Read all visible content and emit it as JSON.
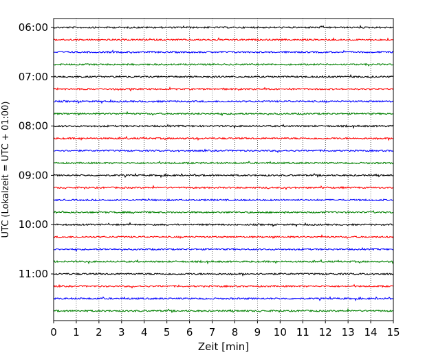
{
  "chart_data": {
    "type": "line",
    "title": "",
    "xlabel": "Zeit  [min]",
    "ylabel": "UTC (Lokalzeit = UTC + 01:00)",
    "xlim": [
      0,
      15
    ],
    "x_ticks": [
      "0",
      "1",
      "2",
      "3",
      "4",
      "5",
      "6",
      "7",
      "8",
      "9",
      "10",
      "11",
      "12",
      "13",
      "14",
      "15"
    ],
    "vertical_grid": "dotted",
    "y_ticks": [
      "06:00",
      "07:00",
      "08:00",
      "09:00",
      "10:00",
      "11:00"
    ],
    "trace_interval_min": 15,
    "trace_start": "06:00",
    "trace_count": 24,
    "colors": [
      "#000000",
      "#ff0000",
      "#0000ff",
      "#008000"
    ]
  }
}
